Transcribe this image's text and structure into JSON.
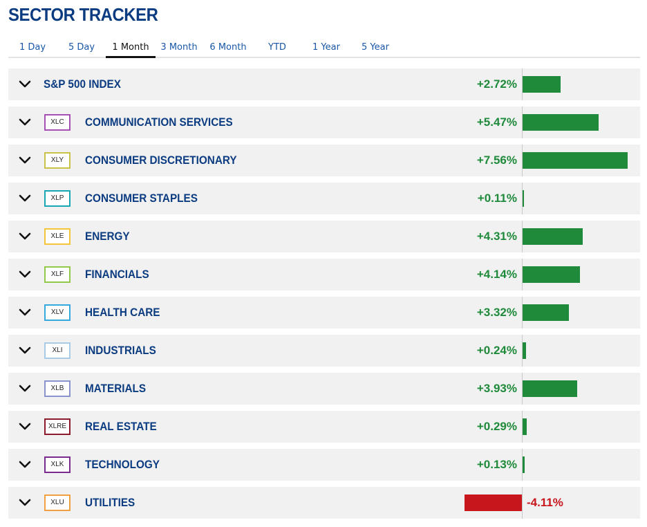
{
  "title": "SECTOR TRACKER",
  "tabs": [
    {
      "label": "1 Day"
    },
    {
      "label": "5 Day"
    },
    {
      "label": "1 Month"
    },
    {
      "label": "3 Month"
    },
    {
      "label": "6 Month"
    },
    {
      "label": "YTD"
    },
    {
      "label": "1 Year"
    },
    {
      "label": "5 Year"
    }
  ],
  "active_tab": "1 Month",
  "colors": {
    "positive": "#1e8a3a",
    "negative": "#c8161d",
    "row_background": "#f1f1f1",
    "text": "#0b3b80"
  },
  "rows": [
    {
      "ticker": "",
      "name": "S&P 500 INDEX",
      "change_text": "+2.72%",
      "change": 2.72,
      "ticker_color": ""
    },
    {
      "ticker": "XLC",
      "name": "COMMUNICATION SERVICES",
      "change_text": "+5.47%",
      "change": 5.47,
      "ticker_color": "#a54fb5"
    },
    {
      "ticker": "XLY",
      "name": "CONSUMER DISCRETIONARY",
      "change_text": "+7.56%",
      "change": 7.56,
      "ticker_color": "#c8c24a"
    },
    {
      "ticker": "XLP",
      "name": "CONSUMER STAPLES",
      "change_text": "+0.11%",
      "change": 0.11,
      "ticker_color": "#18a5b5"
    },
    {
      "ticker": "XLE",
      "name": "ENERGY",
      "change_text": "+4.31%",
      "change": 4.31,
      "ticker_color": "#f3c63a"
    },
    {
      "ticker": "XLF",
      "name": "FINANCIALS",
      "change_text": "+4.14%",
      "change": 4.14,
      "ticker_color": "#93c94a"
    },
    {
      "ticker": "XLV",
      "name": "HEALTH CARE",
      "change_text": "+3.32%",
      "change": 3.32,
      "ticker_color": "#35a8e0"
    },
    {
      "ticker": "XLI",
      "name": "INDUSTRIALS",
      "change_text": "+0.24%",
      "change": 0.24,
      "ticker_color": "#a8cbe8"
    },
    {
      "ticker": "XLB",
      "name": "MATERIALS",
      "change_text": "+3.93%",
      "change": 3.93,
      "ticker_color": "#8a93cc"
    },
    {
      "ticker": "XLRE",
      "name": "REAL ESTATE",
      "change_text": "+0.29%",
      "change": 0.29,
      "ticker_color": "#8c1a2b"
    },
    {
      "ticker": "XLK",
      "name": "TECHNOLOGY",
      "change_text": "+0.13%",
      "change": 0.13,
      "ticker_color": "#7a2a8c"
    },
    {
      "ticker": "XLU",
      "name": "UTILITIES",
      "change_text": "-4.11%",
      "change": -4.11,
      "ticker_color": "#f0a040"
    }
  ]
}
